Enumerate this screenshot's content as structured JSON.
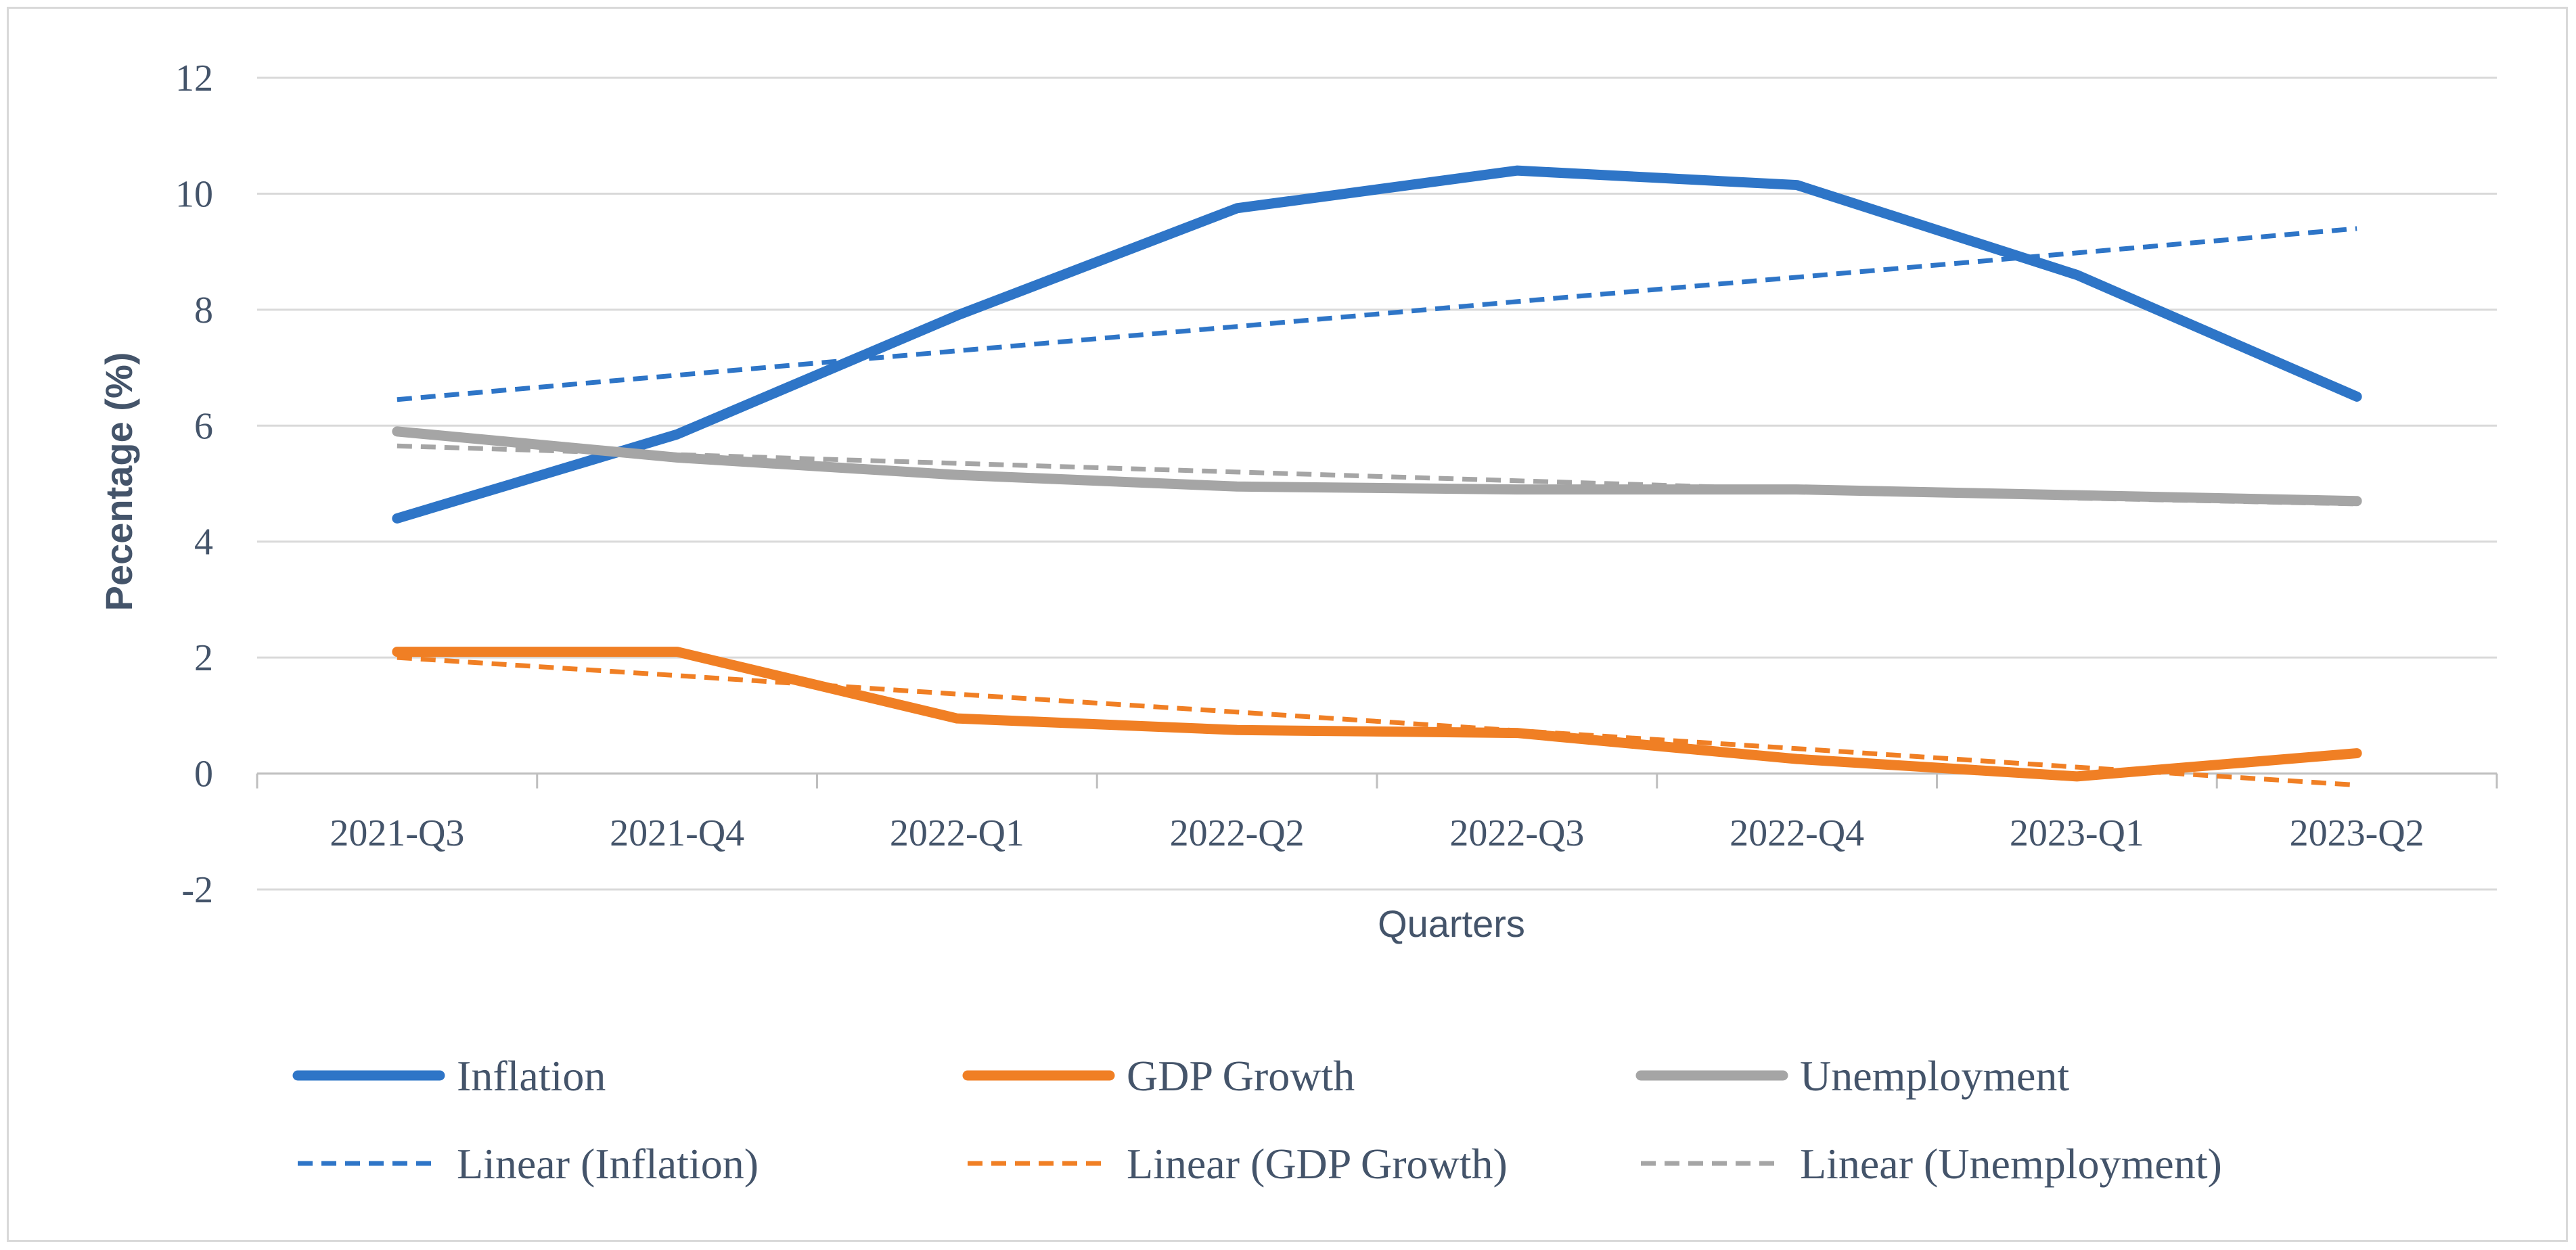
{
  "chart_data": {
    "type": "line",
    "title": "",
    "xlabel": "Quarters",
    "ylabel": "Pecentage (%)",
    "ylim": [
      -2,
      12
    ],
    "yticks": [
      -2,
      0,
      2,
      4,
      6,
      8,
      10,
      12
    ],
    "ytick_labels": [
      "-2",
      "0",
      "2",
      "4",
      "6",
      "8",
      "10",
      "12"
    ],
    "grid": true,
    "legend_position": "bottom",
    "categories": [
      "2021-Q3",
      "2021-Q4",
      "2022-Q1",
      "2022-Q2",
      "2022-Q3",
      "2022-Q4",
      "2023-Q1",
      "2023-Q2"
    ],
    "series": [
      {
        "name": "Inflation",
        "color": "#2e75c7",
        "style": "solid",
        "values": [
          4.4,
          5.85,
          7.9,
          9.75,
          10.4,
          10.15,
          8.6,
          6.5
        ]
      },
      {
        "name": "GDP Growth",
        "color": "#f07f24",
        "style": "solid",
        "values": [
          2.1,
          2.1,
          0.95,
          0.75,
          0.7,
          0.25,
          -0.05,
          0.35
        ]
      },
      {
        "name": "Unemployment",
        "color": "#a5a5a5",
        "style": "solid",
        "values": [
          5.9,
          5.45,
          5.15,
          4.95,
          4.9,
          4.9,
          4.8,
          4.7
        ]
      },
      {
        "name": "Linear (Inflation)",
        "color": "#2e75c7",
        "style": "dashed",
        "values": [
          6.45,
          6.87,
          7.29,
          7.71,
          8.14,
          8.56,
          8.98,
          9.4
        ]
      },
      {
        "name": "Linear (GDP Growth)",
        "color": "#f07f24",
        "style": "dashed",
        "values": [
          2.0,
          1.69,
          1.37,
          1.06,
          0.74,
          0.43,
          0.11,
          -0.2
        ]
      },
      {
        "name": "Linear (Unemployment)",
        "color": "#a5a5a5",
        "style": "dashed",
        "values": [
          5.65,
          5.5,
          5.35,
          5.2,
          5.05,
          4.9,
          4.75,
          4.65
        ]
      }
    ]
  }
}
